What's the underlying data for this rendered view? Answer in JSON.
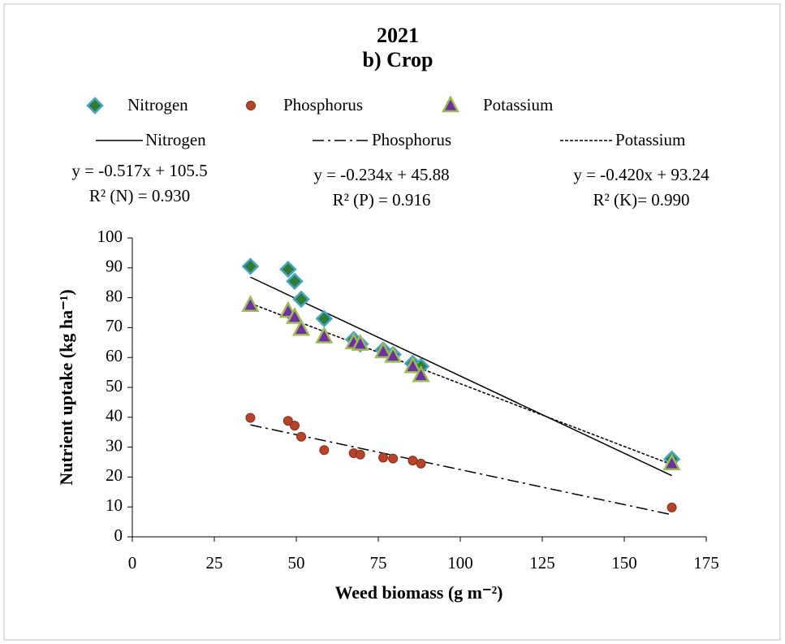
{
  "chart_data": {
    "type": "scatter",
    "title": "2021",
    "subtitle": "b) Crop",
    "x_label": "Weed biomass (g m⁻²)",
    "y_label": "Nutrient uptake (kg ha⁻¹)",
    "xlim": [
      0,
      175
    ],
    "xticks": [
      0,
      25,
      50,
      75,
      100,
      125,
      150,
      175
    ],
    "ylim": [
      0,
      100
    ],
    "yticks": [
      0,
      10,
      20,
      30,
      40,
      50,
      60,
      70,
      80,
      90,
      100
    ],
    "series": [
      {
        "name": "Nitrogen",
        "color": "#2e7d32",
        "edge_color": "#4aa3c8",
        "marker": "diamond",
        "x": [
          36,
          47.5,
          49.5,
          51.5,
          58.5,
          67.5,
          69.5,
          76.5,
          79.5,
          85.5,
          88,
          164.5
        ],
        "values": [
          90.5,
          89.5,
          85.5,
          79.5,
          73,
          66,
          64.5,
          62.5,
          61,
          58,
          57,
          26
        ]
      },
      {
        "name": "Phosphorus",
        "color": "#b5442a",
        "edge_color": "#8b2e14",
        "marker": "circle",
        "x": [
          36,
          47.5,
          49.5,
          51.5,
          58.5,
          67.5,
          69.5,
          76.5,
          79.5,
          85.5,
          88,
          164.5
        ],
        "values": [
          39.8,
          38.8,
          37.2,
          33.5,
          29,
          28,
          27.5,
          26.5,
          26.2,
          25.5,
          24.5,
          9.8
        ]
      },
      {
        "name": "Potassium",
        "color": "#7030a0",
        "edge_color": "#9bbb59",
        "marker": "triangle",
        "x": [
          36,
          47.5,
          49.5,
          51.5,
          58.5,
          67.5,
          69.5,
          76.5,
          79.5,
          85.5,
          88,
          164.5
        ],
        "values": [
          77.5,
          75.5,
          73.5,
          69.5,
          67,
          65,
          64.5,
          62,
          60.5,
          57,
          54,
          24.5
        ]
      }
    ],
    "trendlines": [
      {
        "name": "Nitrogen",
        "line_style": "solid",
        "slope": -0.517,
        "intercept": 105.5,
        "equation": "y = -0.517x + 105.5",
        "r2": "R² (N) = 0.930"
      },
      {
        "name": "Phosphorus",
        "line_style": "dashdot",
        "slope": -0.234,
        "intercept": 45.88,
        "equation": "y = -0.234x + 45.88",
        "r2": "R² (P) = 0.916"
      },
      {
        "name": "Potassium",
        "line_style": "dotted",
        "slope": -0.42,
        "intercept": 93.24,
        "equation": "y = -0.420x + 93.24",
        "r2": "R² (K)= 0.990"
      }
    ]
  }
}
